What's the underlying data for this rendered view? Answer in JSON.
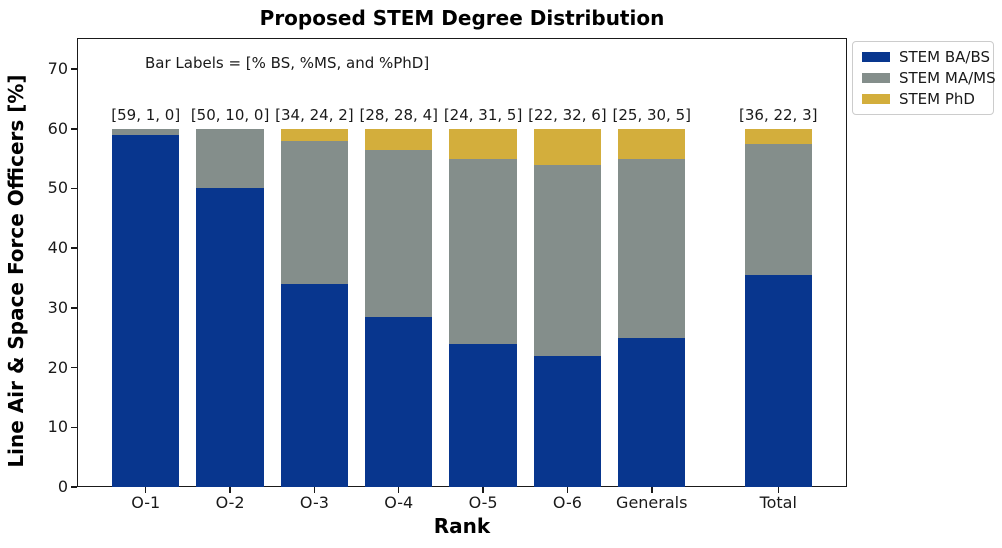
{
  "figure": {
    "title": "Proposed STEM Degree Distribution",
    "xlabel": "Rank",
    "ylabel": "Line Air & Space Force Officers [%]",
    "annotation": "Bar Labels = [% BS, %MS, and %PhD]"
  },
  "colors": {
    "bs_blue": "#08368e",
    "ms_gray": "#848e8b",
    "phd_gold": "#d3ae3c",
    "axis": "#1a1a1a",
    "legend_border": "#cccccc",
    "background": "#ffffff"
  },
  "chart_data": {
    "type": "bar",
    "subtype": "stacked",
    "title": "Proposed STEM Degree Distribution",
    "xlabel": "Rank",
    "ylabel": "Line Air & Space Force Officers [%]",
    "categories": [
      "O-1",
      "O-2",
      "O-3",
      "O-4",
      "O-5",
      "O-6",
      "Generals",
      "Total"
    ],
    "x_positions": [
      0,
      1,
      2,
      3,
      4,
      5,
      6,
      7.5
    ],
    "series": [
      {
        "name": "STEM BA/BS",
        "color": "#08368e",
        "values": [
          59,
          50,
          34,
          28.4,
          24,
          22,
          25,
          35.5
        ]
      },
      {
        "name": "STEM MA/MS",
        "color": "#848e8b",
        "values": [
          1,
          10,
          24,
          28.1,
          31,
          32,
          30,
          22
        ]
      },
      {
        "name": "STEM PhD",
        "color": "#d3ae3c",
        "values": [
          0,
          0,
          2,
          3.5,
          5,
          6,
          5,
          2.5
        ]
      }
    ],
    "bar_labels": [
      "[59, 1, 0]",
      "[50, 10, 0]",
      "[34, 24, 2]",
      "[28, 28, 4]",
      "[24, 31, 5]",
      "[22, 32, 6]",
      "[25, 30, 5]",
      "[36, 22, 3]"
    ],
    "annotation": "Bar Labels = [% BS, %MS, and %PhD]",
    "yticks": [
      0,
      10,
      20,
      30,
      40,
      50,
      60,
      70
    ],
    "ylim": [
      0,
      75.2
    ],
    "xlim": [
      -0.815,
      8.315
    ],
    "bar_width": 0.8,
    "grid": false,
    "legend_position": "upper right, outside plot"
  }
}
